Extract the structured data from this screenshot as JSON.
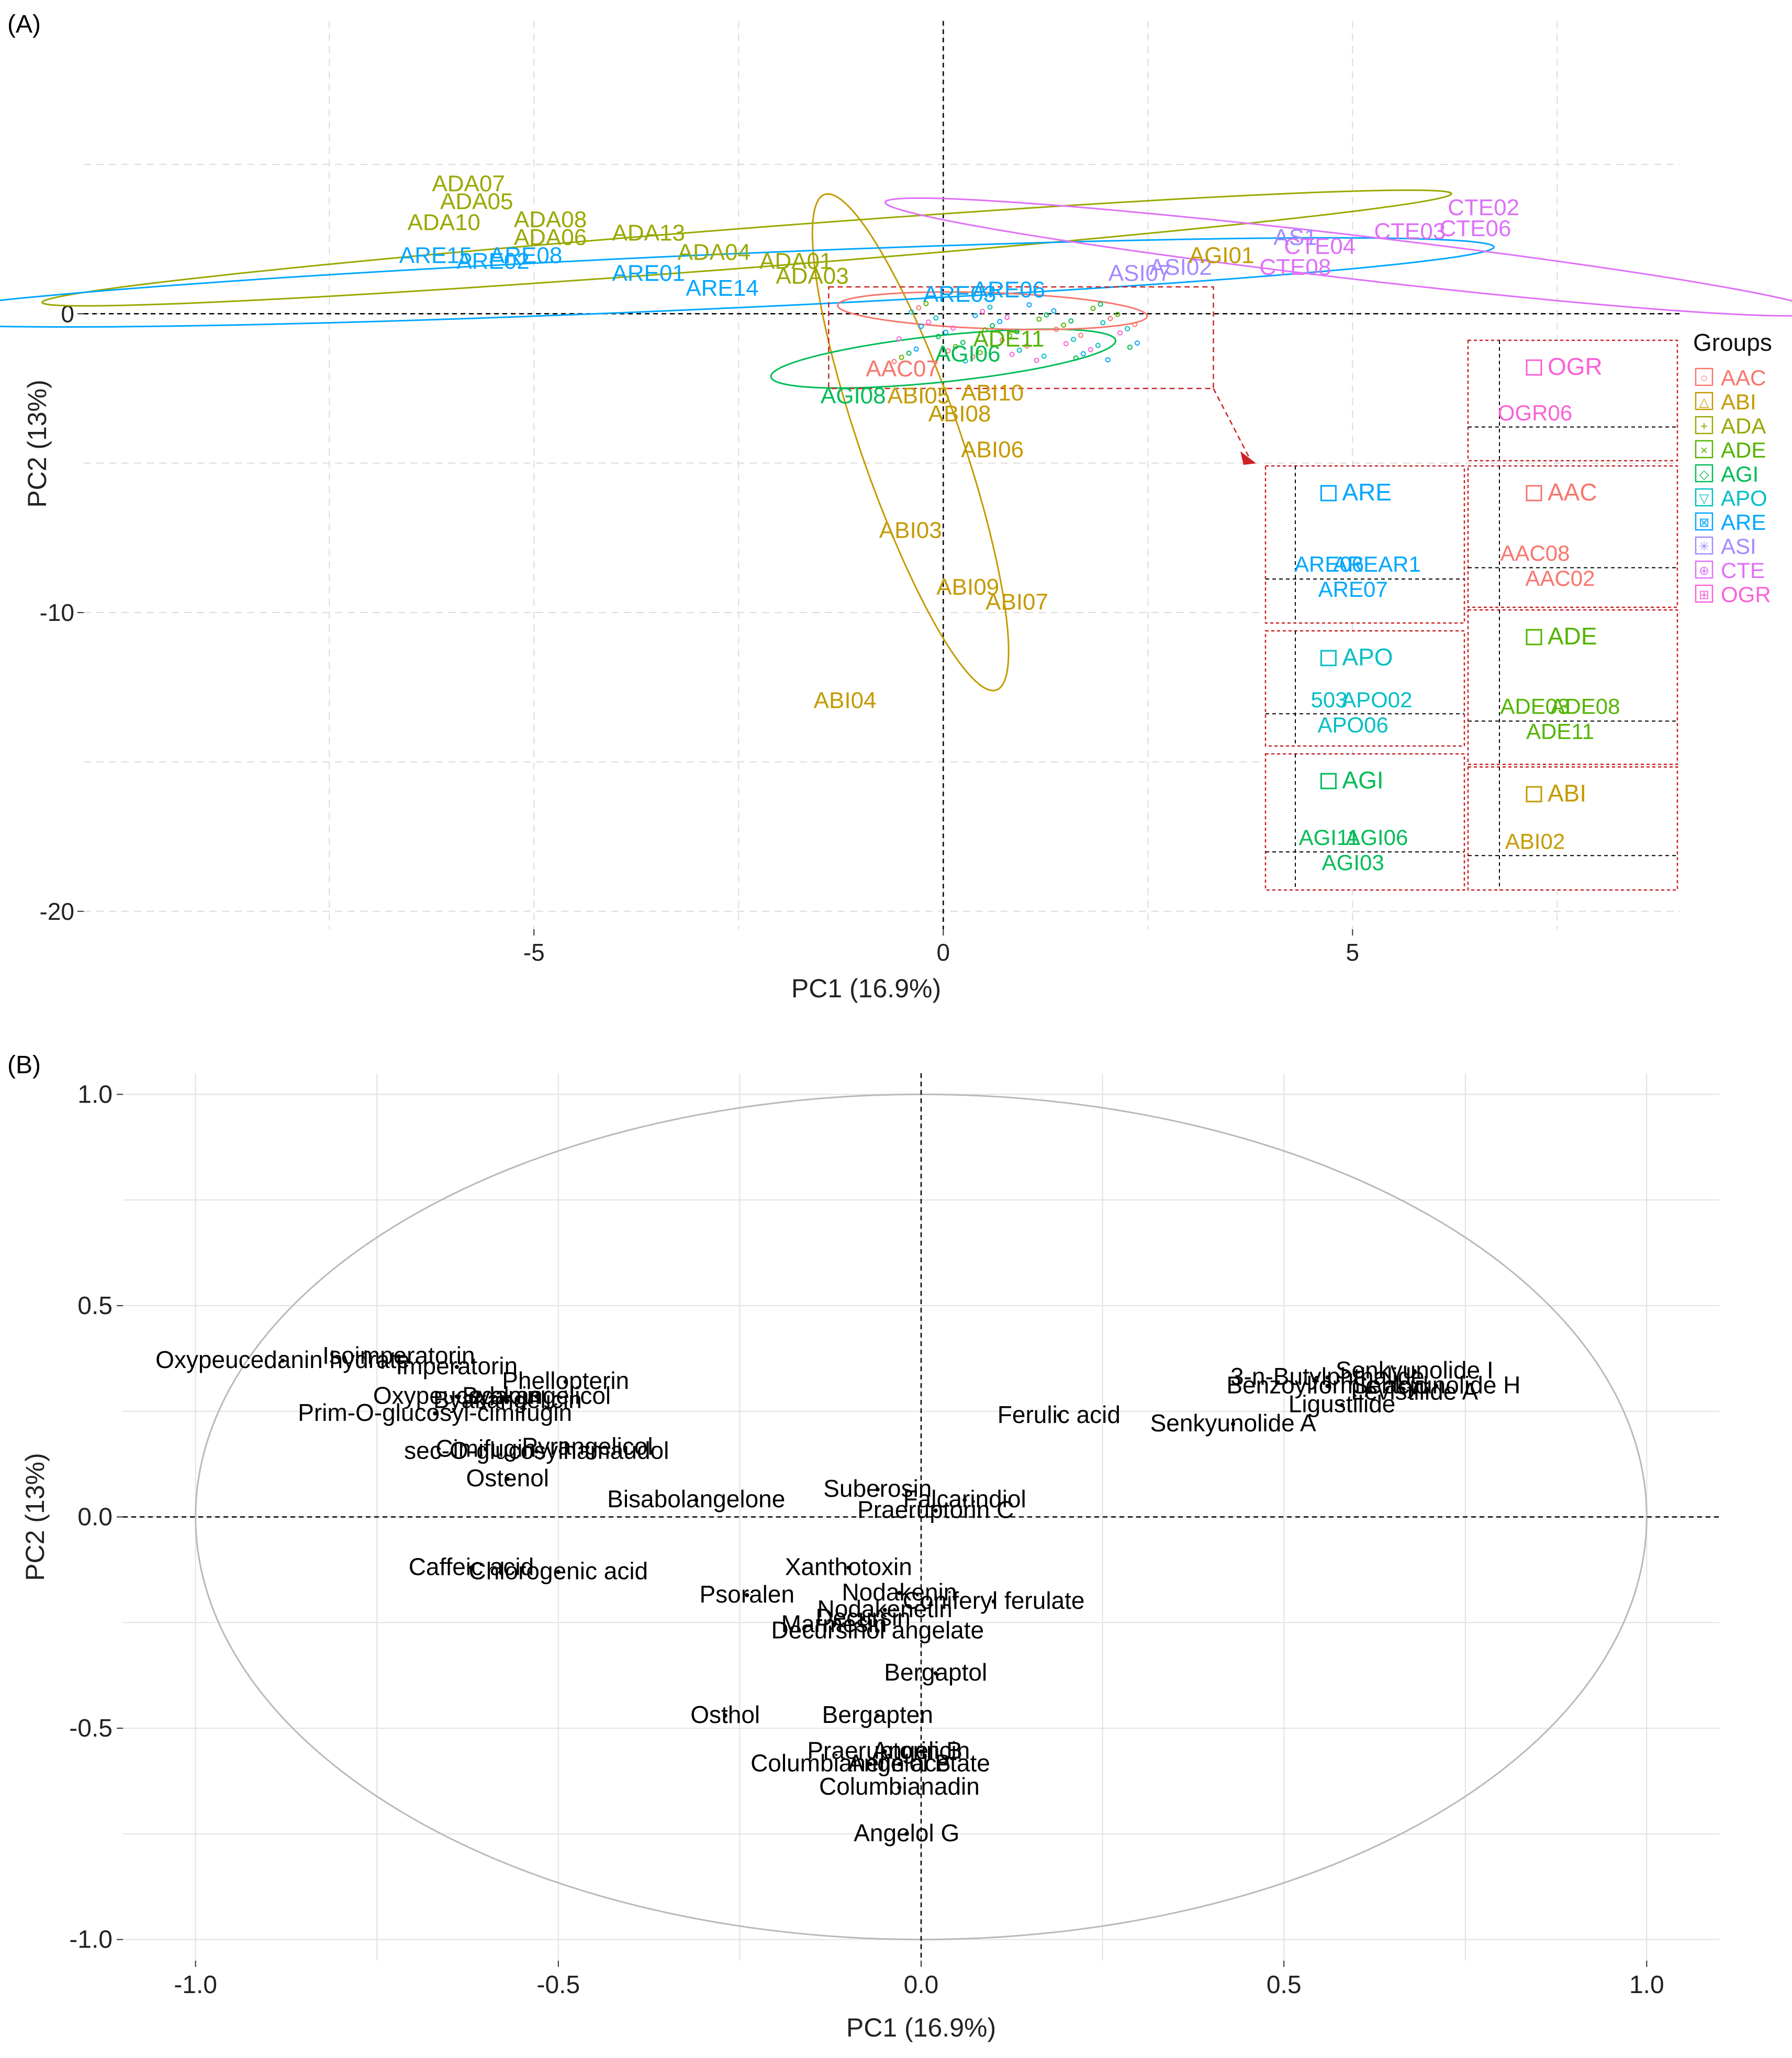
{
  "panels": {
    "a_label": "(A)",
    "b_label": "(B)"
  },
  "chart_data": [
    {
      "type": "scatter",
      "panel": "(A)",
      "xlabel": "PC1 (16.9%)",
      "ylabel": "PC2 (13%)",
      "xlim": [
        -10.5,
        9.0
      ],
      "ylim": [
        -20.6,
        9.8
      ],
      "xticks": [
        -5,
        0,
        5
      ],
      "yticks": [
        0,
        -10,
        -20
      ],
      "legend": {
        "title": "Groups",
        "position": "right",
        "items": [
          {
            "name": "AAC",
            "color": "#F8766D",
            "symbol": "○"
          },
          {
            "name": "ABI",
            "color": "#C49A00",
            "symbol": "△"
          },
          {
            "name": "ADA",
            "color": "#99A800",
            "symbol": "+"
          },
          {
            "name": "ADE",
            "color": "#53B400",
            "symbol": "×"
          },
          {
            "name": "AGI",
            "color": "#00BC56",
            "symbol": "◇"
          },
          {
            "name": "APO",
            "color": "#00BFC4",
            "symbol": "▽"
          },
          {
            "name": "ARE",
            "color": "#00A6FF",
            "symbol": "⊠"
          },
          {
            "name": "ASI",
            "color": "#A58AFF",
            "symbol": "✳"
          },
          {
            "name": "CTE",
            "color": "#DF70F8",
            "symbol": "⊕"
          },
          {
            "name": "OGR",
            "color": "#FB61D7",
            "symbol": "⊞"
          }
        ]
      },
      "ellipses": [
        {
          "group": "ABI",
          "cx": -0.4,
          "cy": -4.3,
          "rx": 14.6,
          "ry": 3.3,
          "angle": -66
        },
        {
          "group": "ADA",
          "cx": -2.4,
          "cy": 2.2,
          "rx": 8.8,
          "ry": 0.65,
          "angle": 12
        },
        {
          "group": "ARE",
          "cx": -3.0,
          "cy": 1.05,
          "rx": 9.8,
          "ry": 0.9,
          "angle": 7
        },
        {
          "group": "AGI",
          "cx": 0.0,
          "cy": -1.5,
          "rx": 2.2,
          "ry": 0.75,
          "angle": 18
        },
        {
          "group": "CTE",
          "cx": 5.0,
          "cy": 1.9,
          "rx": 6.0,
          "ry": 0.7,
          "angle": -18
        },
        {
          "group": "AAC",
          "cx": 0.6,
          "cy": 0.1,
          "rx": 1.9,
          "ry": 0.6,
          "angle": -6
        }
      ],
      "points": [
        {
          "label": "ADA07",
          "group": "ADA",
          "x": -5.8,
          "y": 4.1
        },
        {
          "label": "ADA05",
          "group": "ADA",
          "x": -5.7,
          "y": 3.5
        },
        {
          "label": "ADA10",
          "group": "ADA",
          "x": -6.1,
          "y": 2.8
        },
        {
          "label": "ADA08",
          "group": "ADA",
          "x": -4.8,
          "y": 2.9
        },
        {
          "label": "ADA06",
          "group": "ADA",
          "x": -4.8,
          "y": 2.3
        },
        {
          "label": "ADA13",
          "group": "ADA",
          "x": -3.6,
          "y": 2.45
        },
        {
          "label": "ADA04",
          "group": "ADA",
          "x": -2.8,
          "y": 1.8
        },
        {
          "label": "ADA01",
          "group": "ADA",
          "x": -1.8,
          "y": 1.5
        },
        {
          "label": "ADA03",
          "group": "ADA",
          "x": -1.6,
          "y": 1.0
        },
        {
          "label": "ARE15",
          "group": "ARE",
          "x": -6.2,
          "y": 1.7
        },
        {
          "label": "ARE08",
          "group": "ARE",
          "x": -5.1,
          "y": 1.7
        },
        {
          "label": "ARE02",
          "group": "ARE",
          "x": -5.5,
          "y": 1.5
        },
        {
          "label": "ARE01",
          "group": "ARE",
          "x": -3.6,
          "y": 1.1
        },
        {
          "label": "ARE14",
          "group": "ARE",
          "x": -2.7,
          "y": 0.6
        },
        {
          "label": "ARE06",
          "group": "ARE",
          "x": 0.8,
          "y": 0.55
        },
        {
          "label": "ARE03",
          "group": "ARE",
          "x": 0.2,
          "y": 0.4
        },
        {
          "label": "ABI10",
          "group": "ABI",
          "x": 0.6,
          "y": -2.9
        },
        {
          "label": "ABI05",
          "group": "ABI",
          "x": -0.3,
          "y": -3.0
        },
        {
          "label": "ABI08",
          "group": "ABI",
          "x": 0.2,
          "y": -3.6
        },
        {
          "label": "ABI06",
          "group": "ABI",
          "x": 0.6,
          "y": -4.8
        },
        {
          "label": "ABI03",
          "group": "ABI",
          "x": -0.4,
          "y": -7.5
        },
        {
          "label": "ABI09",
          "group": "ABI",
          "x": 0.3,
          "y": -9.4
        },
        {
          "label": "ABI07",
          "group": "ABI",
          "x": 0.9,
          "y": -9.9
        },
        {
          "label": "ABI04",
          "group": "ABI",
          "x": -1.2,
          "y": -13.2
        },
        {
          "label": "AGI08",
          "group": "AGI",
          "x": -1.1,
          "y": -3.0
        },
        {
          "label": "AGI06",
          "group": "AGI",
          "x": 0.3,
          "y": -1.6
        },
        {
          "label": "AAC07",
          "group": "AAC",
          "x": -0.5,
          "y": -2.1
        },
        {
          "label": "ADE11",
          "group": "ADE",
          "x": 0.8,
          "y": -1.1
        },
        {
          "label": "ASI07",
          "group": "ASI",
          "x": 2.4,
          "y": 1.1
        },
        {
          "label": "ASI02",
          "group": "ASI",
          "x": 2.9,
          "y": 1.3
        },
        {
          "label": "AGI01",
          "group": "ABI",
          "x": 3.4,
          "y": 1.7
        },
        {
          "label": "AS1",
          "group": "ASI",
          "x": 4.3,
          "y": 2.3
        },
        {
          "label": "CTE04",
          "group": "CTE",
          "x": 4.6,
          "y": 2.0
        },
        {
          "label": "CTE03",
          "group": "CTE",
          "x": 5.7,
          "y": 2.5
        },
        {
          "label": "CTE06",
          "group": "CTE",
          "x": 6.5,
          "y": 2.6
        },
        {
          "label": "CTE02",
          "group": "CTE",
          "x": 6.6,
          "y": 3.3
        },
        {
          "label": "CTE08",
          "group": "CTE",
          "x": 4.3,
          "y": 1.3
        }
      ],
      "zoom_panels": [
        {
          "group": "OGR",
          "title": "OGR",
          "labels": [
            "OGR06"
          ]
        },
        {
          "group": "ARE",
          "title": "ARE",
          "labels": [
            "ARE06",
            "ARE07",
            "AREAR1"
          ]
        },
        {
          "group": "AAC",
          "title": "AAC",
          "labels": [
            "AAC08",
            "AAC02"
          ]
        },
        {
          "group": "APO",
          "title": "APO",
          "labels": [
            "503",
            "APO06",
            "APO02"
          ]
        },
        {
          "group": "ADE",
          "title": "ADE",
          "labels": [
            "ADE03",
            "ADE11",
            "ADE08"
          ]
        },
        {
          "group": "AGI",
          "title": "AGI",
          "labels": [
            "AGI11",
            "AGI03",
            "AGI06"
          ]
        },
        {
          "group": "ABI",
          "title": "ABI",
          "labels": [
            "ABI02"
          ]
        }
      ]
    },
    {
      "type": "scatter",
      "panel": "(B)",
      "xlabel": "PC1 (16.9%)",
      "ylabel": "PC2 (13%)",
      "xlim": [
        -1.1,
        1.1
      ],
      "ylim": [
        -1.05,
        1.05
      ],
      "xticks": [
        -1.0,
        -0.5,
        0.0,
        0.5,
        1.0
      ],
      "xtick_labels": [
        "-1.0",
        "-0.5",
        "0.0",
        "0.5",
        "1.0"
      ],
      "yticks": [
        1.0,
        0.5,
        0.0,
        -0.5,
        -1.0
      ],
      "ytick_labels": [
        "1.0",
        "0.5",
        "0.0",
        "-0.5",
        "-1.0"
      ],
      "circle_radius": 1.0,
      "points": [
        {
          "label": "Oxypeucedanin hydrate",
          "x": -0.88,
          "y": 0.37
        },
        {
          "label": "Isoimperatorin",
          "x": -0.72,
          "y": 0.38
        },
        {
          "label": "Imperatorin",
          "x": -0.64,
          "y": 0.355
        },
        {
          "label": "Phellopterin",
          "x": -0.49,
          "y": 0.32
        },
        {
          "label": "Oxypeucedanin",
          "x": -0.64,
          "y": 0.285
        },
        {
          "label": "Byakangelicol",
          "x": -0.53,
          "y": 0.285
        },
        {
          "label": "Byakangelicin",
          "x": -0.57,
          "y": 0.275
        },
        {
          "label": "Prim-O-glucosyl-cimifugin",
          "x": -0.67,
          "y": 0.245
        },
        {
          "label": "sec-O-glucosylhamaudol",
          "x": -0.53,
          "y": 0.155
        },
        {
          "label": "Cimifugin",
          "x": -0.6,
          "y": 0.16
        },
        {
          "label": "Pyrangelicol",
          "x": -0.46,
          "y": 0.165
        },
        {
          "label": "Ostenol",
          "x": -0.57,
          "y": 0.09
        },
        {
          "label": "Bisabolangelone",
          "x": -0.31,
          "y": 0.04
        },
        {
          "label": "Suberosin",
          "x": -0.06,
          "y": 0.065
        },
        {
          "label": "Falcarindiol",
          "x": 0.06,
          "y": 0.04
        },
        {
          "label": "Praeruptorin C",
          "x": 0.02,
          "y": 0.015
        },
        {
          "label": "Ferulic acid",
          "x": 0.19,
          "y": 0.24
        },
        {
          "label": "Senkyunolide A",
          "x": 0.43,
          "y": 0.22
        },
        {
          "label": "3-n-Butylphthalide",
          "x": 0.56,
          "y": 0.33
        },
        {
          "label": "Senkyunolide I",
          "x": 0.68,
          "y": 0.345
        },
        {
          "label": "Benzoylformic acid",
          "x": 0.56,
          "y": 0.31
        },
        {
          "label": "Senkyunolide H",
          "x": 0.71,
          "y": 0.31
        },
        {
          "label": "Levistilide A",
          "x": 0.68,
          "y": 0.295
        },
        {
          "label": "Ligustilide",
          "x": 0.58,
          "y": 0.265
        },
        {
          "label": "Caffeic acid",
          "x": -0.62,
          "y": -0.12
        },
        {
          "label": "Chlorogenic acid",
          "x": -0.5,
          "y": -0.13
        },
        {
          "label": "Xanthotoxin",
          "x": -0.1,
          "y": -0.12
        },
        {
          "label": "Psoralen",
          "x": -0.24,
          "y": -0.185
        },
        {
          "label": "Nodakenin",
          "x": -0.03,
          "y": -0.18
        },
        {
          "label": "Coniferyl ferulate",
          "x": 0.1,
          "y": -0.2
        },
        {
          "label": "Nodakenetin",
          "x": -0.05,
          "y": -0.22
        },
        {
          "label": "Decursin",
          "x": -0.08,
          "y": -0.24
        },
        {
          "label": "Marmesin",
          "x": -0.12,
          "y": -0.255
        },
        {
          "label": "Decursinol angelate",
          "x": -0.06,
          "y": -0.27
        },
        {
          "label": "Bergaptol",
          "x": 0.02,
          "y": -0.37
        },
        {
          "label": "Osthol",
          "x": -0.27,
          "y": -0.47
        },
        {
          "label": "Bergapten",
          "x": -0.06,
          "y": -0.47
        },
        {
          "label": "Praeruptorin B",
          "x": -0.05,
          "y": -0.555
        },
        {
          "label": "Angelicin",
          "x": 0.0,
          "y": -0.555
        },
        {
          "label": "Columbianetin acetate",
          "x": -0.07,
          "y": -0.585
        },
        {
          "label": "Angelol B",
          "x": -0.03,
          "y": -0.585
        },
        {
          "label": "Columbianadin",
          "x": -0.03,
          "y": -0.64
        },
        {
          "label": "Angelol G",
          "x": -0.02,
          "y": -0.75
        }
      ]
    }
  ]
}
